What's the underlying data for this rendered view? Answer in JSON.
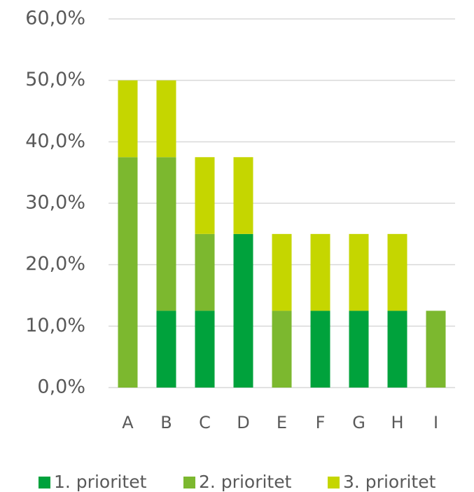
{
  "chart_data": {
    "type": "stacked_bar",
    "categories": [
      "A",
      "B",
      "C",
      "D",
      "E",
      "F",
      "G",
      "H",
      "I"
    ],
    "series": [
      {
        "name": "1. prioritet",
        "color": "#00a23c",
        "values": [
          0,
          12.5,
          12.5,
          25,
          0,
          12.5,
          12.5,
          12.5,
          0
        ]
      },
      {
        "name": "2. prioritet",
        "color": "#7cb82f",
        "values": [
          37.5,
          25,
          12.5,
          0,
          12.5,
          0,
          0,
          0,
          12.5
        ]
      },
      {
        "name": "3. prioritet",
        "color": "#c5d600",
        "values": [
          12.5,
          12.5,
          12.5,
          12.5,
          12.5,
          12.5,
          12.5,
          12.5,
          0
        ]
      }
    ],
    "ylim": [
      0,
      60
    ],
    "yticks": [
      {
        "value": 0,
        "label": "0,0%"
      },
      {
        "value": 10,
        "label": "10,0%"
      },
      {
        "value": 20,
        "label": "20,0%"
      },
      {
        "value": 30,
        "label": "30,0%"
      },
      {
        "value": 40,
        "label": "40,0%"
      },
      {
        "value": 50,
        "label": "50,0%"
      },
      {
        "value": 60,
        "label": "60,0%"
      }
    ],
    "grid": true,
    "legend": "bottom"
  }
}
